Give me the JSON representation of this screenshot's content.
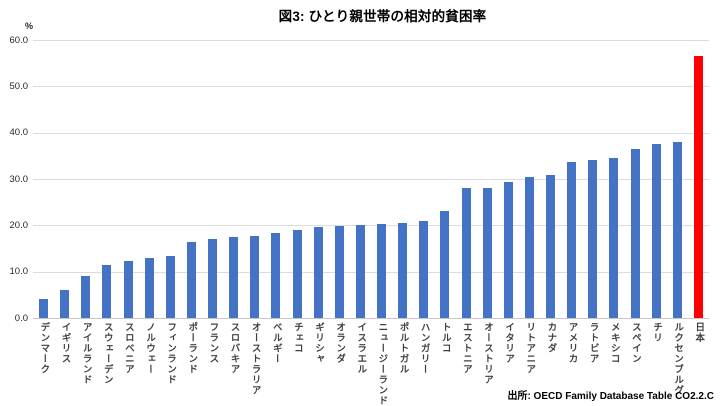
{
  "header": {
    "title": "図3: ひとり親世帯の相対的貧困率"
  },
  "footer": {
    "source": "出所: OECD Family Database Table CO2.2.C"
  },
  "chart_data": {
    "type": "bar",
    "title": "図3: ひとり親世帯の相対的貧困率",
    "ylabel": "%",
    "xlabel": "",
    "ylim": [
      0,
      60
    ],
    "ytick_step": 10,
    "ytick_labels": [
      "60.0",
      "50.0",
      "40.0",
      "30.0",
      "20.0",
      "10.0",
      "0.0"
    ],
    "grid": true,
    "legend": false,
    "bar_color": "#4472C4",
    "highlight_color": "#FF0000",
    "highlight_category": "日本",
    "categories": [
      "デンマーク",
      "イギリス",
      "アイルランド",
      "スウェーデン",
      "スロベニア",
      "ノルウェー",
      "フィンランド",
      "ポーランド",
      "フランス",
      "スロバキア",
      "オーストラリア",
      "ベルギー",
      "チェコ",
      "ギリシャ",
      "オランダ",
      "イスラエル",
      "ニュージーランド",
      "ポルトガル",
      "ハンガリー",
      "トルコ",
      "エストニア",
      "オーストリア",
      "イタリア",
      "リトアニア",
      "カナダ",
      "アメリカ",
      "ラトビア",
      "メキシコ",
      "スペイン",
      "チリ",
      "ルクセンブルグ",
      "日本"
    ],
    "values": [
      4.2,
      6.1,
      9.0,
      11.5,
      12.4,
      13.0,
      13.4,
      16.4,
      17.0,
      17.5,
      17.8,
      18.4,
      19.1,
      19.7,
      19.9,
      20.0,
      20.2,
      20.4,
      21.0,
      23.0,
      28.1,
      28.0,
      29.3,
      30.5,
      30.8,
      33.7,
      34.0,
      34.6,
      36.4,
      37.5,
      38.0,
      56.6
    ],
    "source": "出所: OECD Family Database Table CO2.2.C"
  }
}
